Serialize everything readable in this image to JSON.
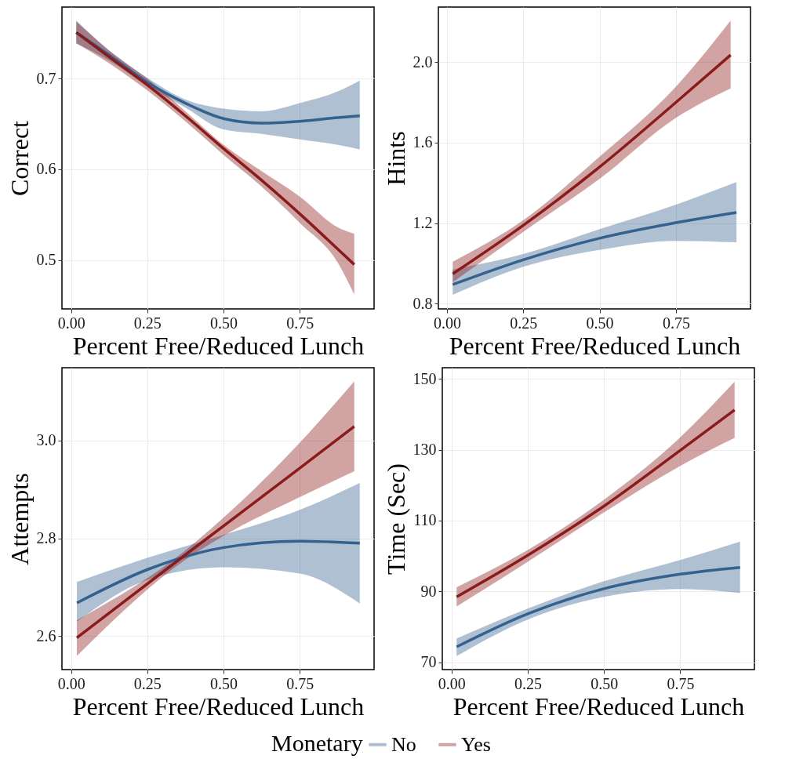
{
  "chart_data": [
    {
      "type": "line",
      "xlabel": "Percent Free/Reduced Lunch",
      "ylabel": "Correct",
      "legend": "bottom",
      "legend_title": "Monetary",
      "xlim": [
        -0.03,
        0.994
      ],
      "ylim": [
        0.446,
        0.779
      ],
      "xticks": [
        {
          "value": 0,
          "label": "0.00"
        },
        {
          "value": 0.25,
          "label": "0.25"
        },
        {
          "value": 0.5,
          "label": "0.50"
        },
        {
          "value": 0.75,
          "label": "0.75"
        }
      ],
      "yticks": [
        0.5,
        0.6,
        0.7
      ],
      "grid": true,
      "series": [
        {
          "name": "No",
          "color": "#35618f",
          "x": [
            0.017,
            0.125,
            0.25,
            0.375,
            0.5,
            0.625,
            0.75,
            0.875,
            0.947
          ],
          "values": [
            0.751,
            0.726,
            0.696,
            0.673,
            0.656,
            0.651,
            0.653,
            0.657,
            0.659
          ],
          "lower": [
            0.739,
            0.72,
            0.692,
            0.668,
            0.644,
            0.639,
            0.633,
            0.627,
            0.622
          ],
          "upper": [
            0.764,
            0.731,
            0.701,
            0.677,
            0.667,
            0.664,
            0.673,
            0.686,
            0.698
          ]
        },
        {
          "name": "Yes",
          "color": "#8b1a1a",
          "x": [
            0.017,
            0.125,
            0.25,
            0.375,
            0.5,
            0.625,
            0.75,
            0.875,
            0.929
          ],
          "values": [
            0.751,
            0.724,
            0.693,
            0.659,
            0.623,
            0.588,
            0.551,
            0.512,
            0.495
          ],
          "lower": [
            0.739,
            0.717,
            0.687,
            0.653,
            0.616,
            0.581,
            0.541,
            0.497,
            0.462
          ],
          "upper": [
            0.763,
            0.731,
            0.7,
            0.664,
            0.627,
            0.598,
            0.57,
            0.536,
            0.529
          ]
        }
      ]
    },
    {
      "type": "line",
      "xlabel": "Percent Free/Reduced Lunch",
      "ylabel": "Hints",
      "legend": "bottom",
      "xlim": [
        -0.028,
        0.994
      ],
      "ylim": [
        0.774,
        2.273
      ],
      "xticks": [
        {
          "value": 0,
          "label": "0.00"
        },
        {
          "value": 0.25,
          "label": "0.25"
        },
        {
          "value": 0.5,
          "label": "0.50"
        },
        {
          "value": 0.75,
          "label": "0.75"
        }
      ],
      "yticks": [
        0.8,
        1.2,
        1.6,
        {
          "value": 2,
          "label": "2.0"
        }
      ],
      "grid": true,
      "series": [
        {
          "name": "No",
          "color": "#35618f",
          "x": [
            0.019,
            0.25,
            0.5,
            0.75,
            0.948
          ],
          "values": [
            0.895,
            1.018,
            1.125,
            1.202,
            1.253
          ],
          "lower": [
            0.844,
            0.983,
            1.067,
            1.112,
            1.105
          ],
          "upper": [
            0.97,
            1.047,
            1.17,
            1.292,
            1.404
          ]
        },
        {
          "name": "Yes",
          "color": "#8b1a1a",
          "x": [
            0.019,
            0.25,
            0.5,
            0.75,
            0.929
          ],
          "values": [
            0.948,
            1.189,
            1.479,
            1.8,
            2.035
          ],
          "lower": [
            0.906,
            1.157,
            1.42,
            1.723,
            1.869
          ],
          "upper": [
            1.009,
            1.215,
            1.53,
            1.878,
            2.206
          ]
        }
      ]
    },
    {
      "type": "line",
      "xlabel": "Percent Free/Reduced Lunch",
      "ylabel": "Attempts",
      "legend": "bottom",
      "xlim": [
        -0.03,
        0.994
      ],
      "ylim": [
        2.532,
        3.148
      ],
      "xticks": [
        {
          "value": 0,
          "label": "0.00"
        },
        {
          "value": 0.25,
          "label": "0.25"
        },
        {
          "value": 0.5,
          "label": "0.50"
        },
        {
          "value": 0.75,
          "label": "0.75"
        }
      ],
      "yticks": [
        2.6,
        2.8,
        {
          "value": 3,
          "label": "3.0"
        }
      ],
      "grid": true,
      "series": [
        {
          "name": "No",
          "color": "#35618f",
          "x": [
            0.019,
            0.25,
            0.5,
            0.75,
            0.947
          ],
          "values": [
            2.668,
            2.736,
            2.781,
            2.794,
            2.79
          ],
          "lower": [
            2.63,
            2.715,
            2.741,
            2.728,
            2.667
          ],
          "upper": [
            2.711,
            2.76,
            2.807,
            2.858,
            2.913
          ]
        },
        {
          "name": "Yes",
          "color": "#8b1a1a",
          "x": [
            0.019,
            0.37,
            0.5,
            0.75,
            0.929
          ],
          "values": [
            2.597,
            2.764,
            2.825,
            2.943,
            3.028
          ],
          "lower": [
            2.56,
            2.754,
            2.805,
            2.884,
            2.937
          ],
          "upper": [
            2.633,
            2.773,
            2.842,
            2.995,
            3.12
          ]
        }
      ]
    },
    {
      "type": "line",
      "xlabel": "Percent Free/Reduced Lunch",
      "ylabel": "Time (Sec)",
      "xlim": [
        -0.03,
        0.993
      ],
      "ylim": [
        68,
        153.1
      ],
      "xticks": [
        {
          "value": 0,
          "label": "0.00"
        },
        {
          "value": 0.25,
          "label": "0.25"
        },
        {
          "value": 0.5,
          "label": "0.50"
        },
        {
          "value": 0.75,
          "label": "0.75"
        }
      ],
      "yticks": [
        70,
        90,
        110,
        130,
        150
      ],
      "grid": true,
      "legend": "bottom",
      "series": [
        {
          "name": "No",
          "color": "#35618f",
          "x": [
            0.017,
            0.25,
            0.5,
            0.75,
            0.946
          ],
          "values": [
            74.4,
            83.7,
            90.8,
            94.9,
            96.8
          ],
          "lower": [
            71.8,
            82.1,
            88.5,
            90.7,
            89.6
          ],
          "upper": [
            76.8,
            85.2,
            92.9,
            98.9,
            104.1
          ]
        },
        {
          "name": "Yes",
          "color": "#8b1a1a",
          "x": [
            0.017,
            0.25,
            0.5,
            0.75,
            0.928
          ],
          "values": [
            88.5,
            100.2,
            114.1,
            129.8,
            141.2
          ],
          "lower": [
            85.8,
            98.4,
            112.3,
            125.4,
            133.3
          ],
          "upper": [
            91.2,
            101.7,
            115.9,
            133.5,
            149.2
          ]
        }
      ]
    }
  ]
}
